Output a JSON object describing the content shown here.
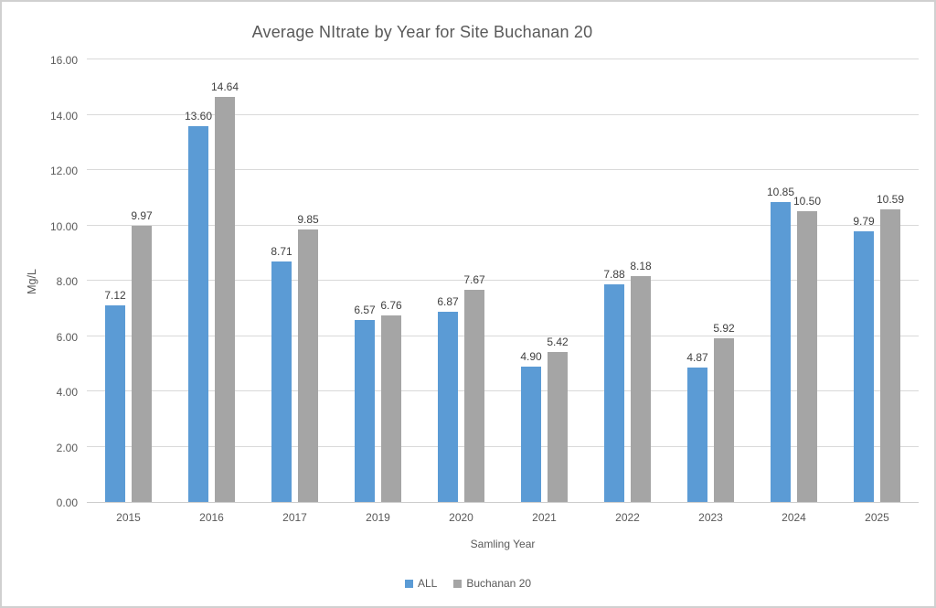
{
  "chart_data": {
    "type": "bar",
    "title": "Average NItrate by Year for Site Buchanan 20",
    "xlabel": "Samling Year",
    "ylabel": "Mg/L",
    "categories": [
      "2015",
      "2016",
      "2017",
      "2019",
      "2020",
      "2021",
      "2022",
      "2023",
      "2024",
      "2025"
    ],
    "series": [
      {
        "name": "ALL",
        "color": "#5B9BD5",
        "values": [
          7.12,
          13.6,
          8.71,
          6.57,
          6.87,
          4.9,
          7.88,
          4.87,
          10.85,
          9.79
        ]
      },
      {
        "name": "Buchanan 20",
        "color": "#A5A5A5",
        "values": [
          9.97,
          14.64,
          9.85,
          6.76,
          7.67,
          5.42,
          8.18,
          5.92,
          10.5,
          10.59
        ]
      }
    ],
    "ylim": [
      0,
      16
    ],
    "ytick_step": 2,
    "ytick_labels": [
      "0.00",
      "2.00",
      "4.00",
      "6.00",
      "8.00",
      "10.00",
      "12.00",
      "14.00",
      "16.00"
    ],
    "value_labels": true,
    "value_label_decimals": 2,
    "grid": true,
    "gridline_color": "#D9D9D9",
    "legend_position": "bottom",
    "text_color": "#595959",
    "value_label_color": "#404040"
  }
}
